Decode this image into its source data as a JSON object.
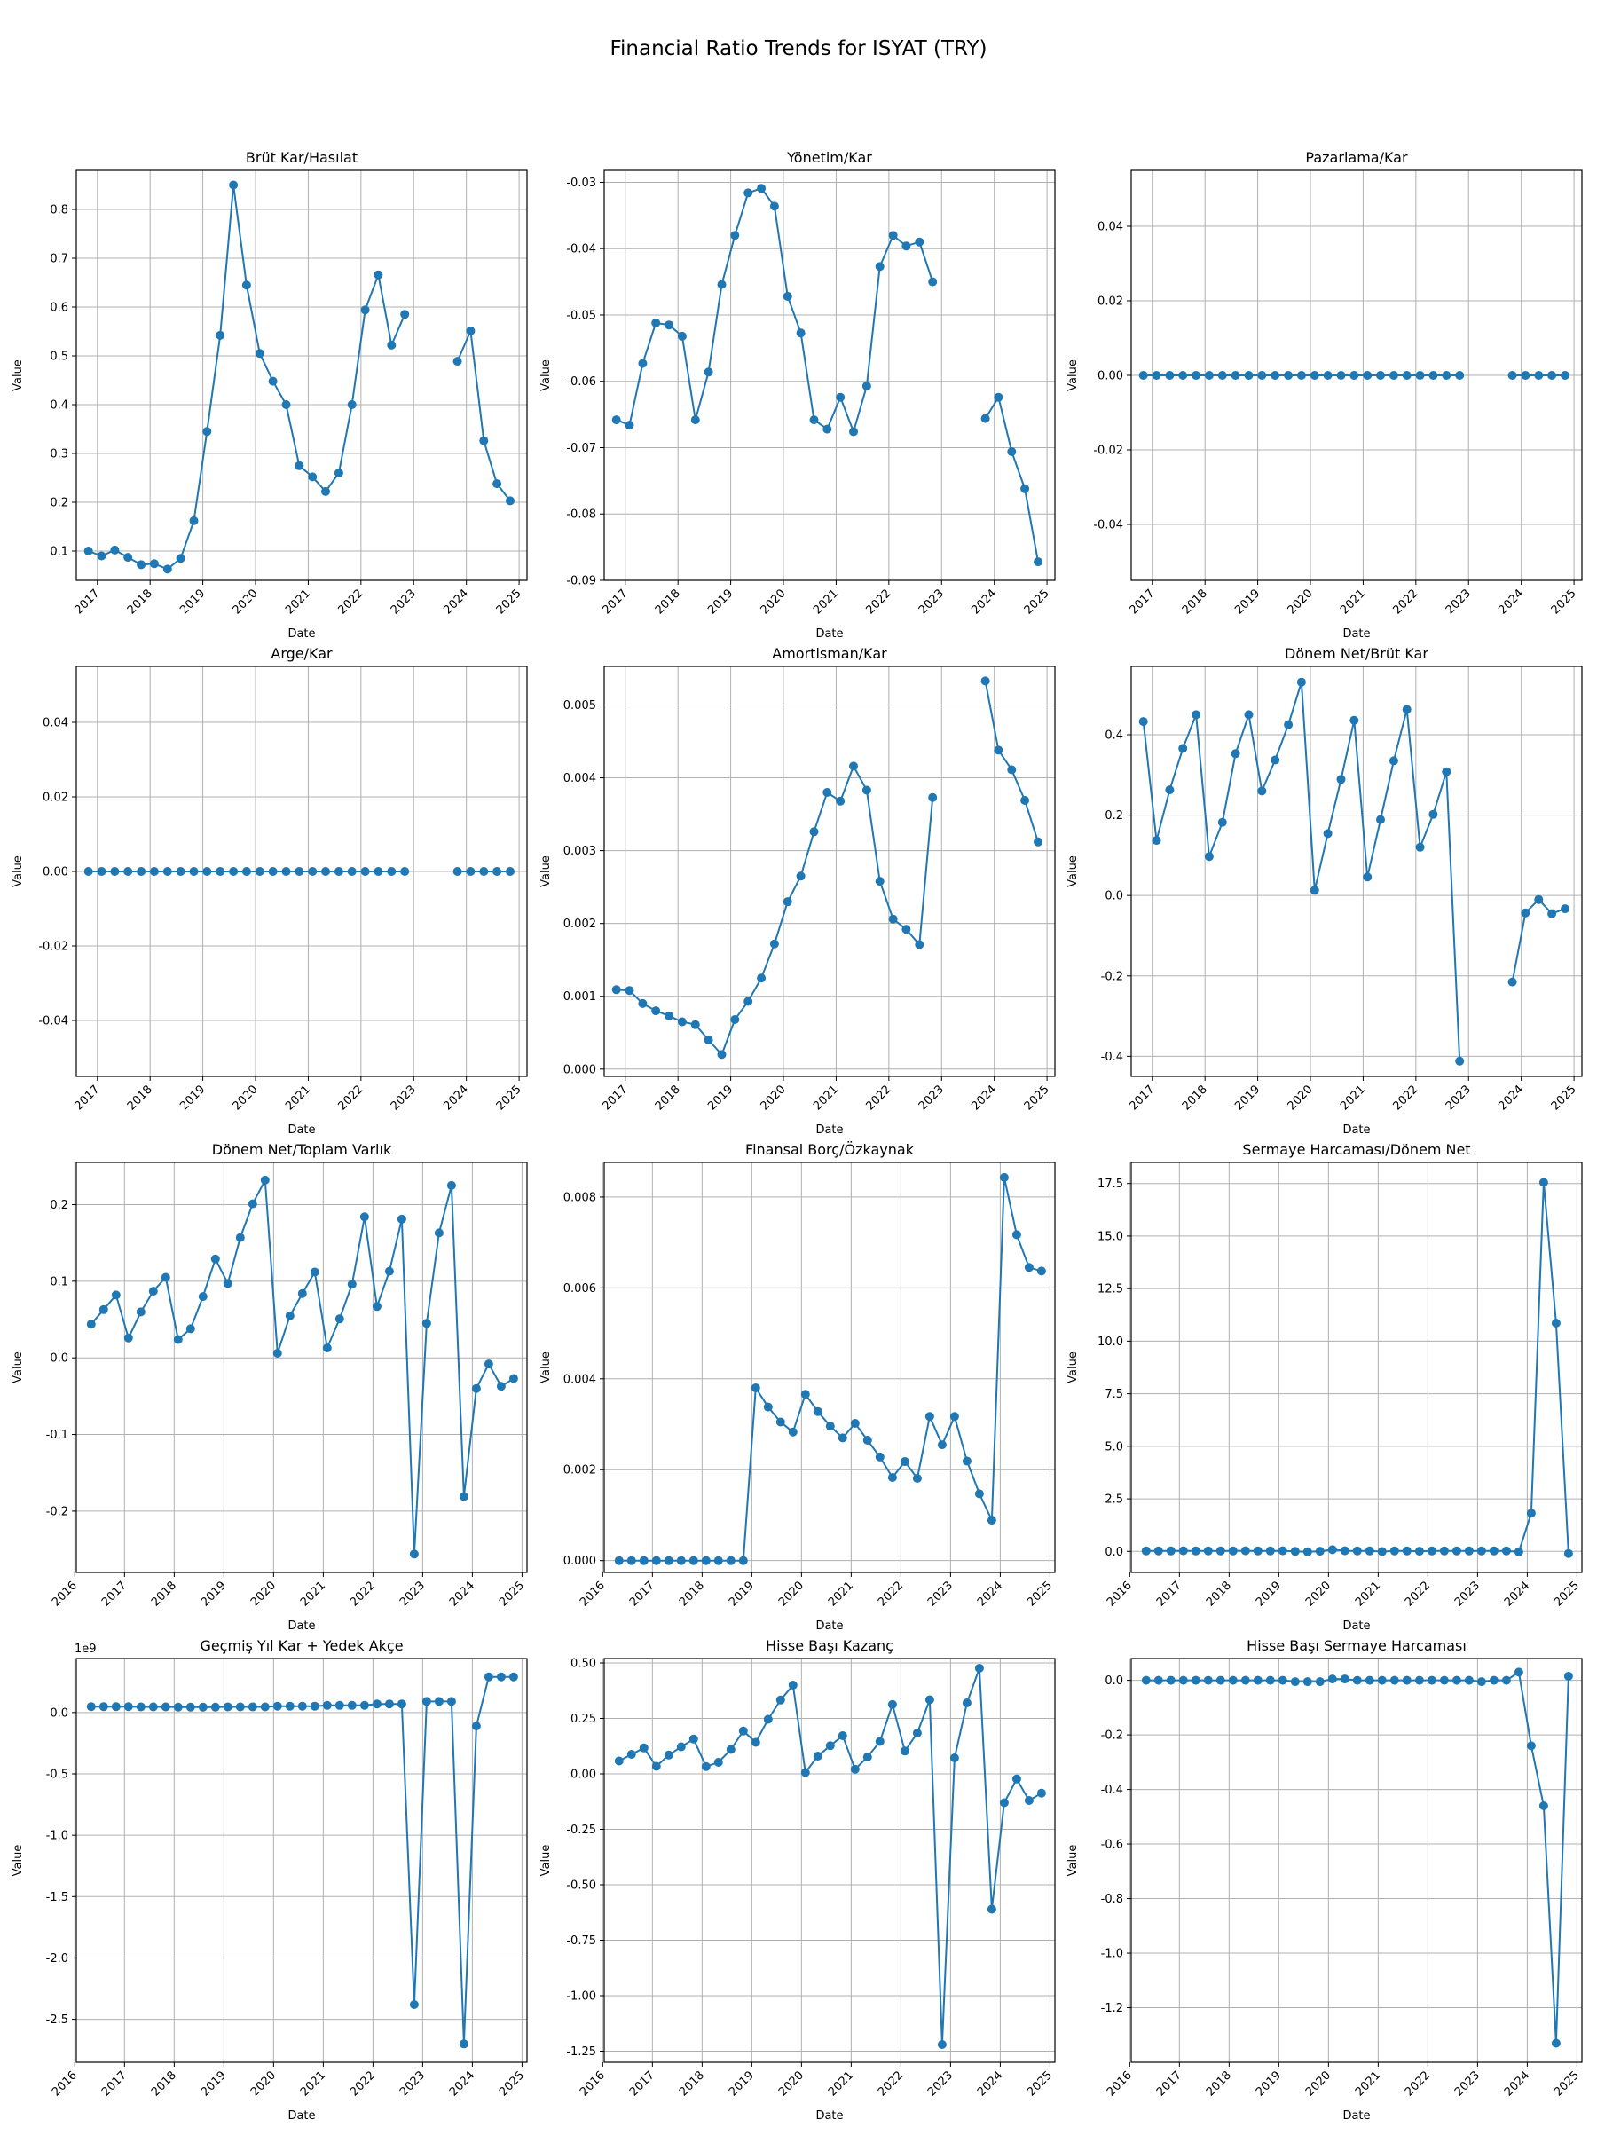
{
  "figure_title": "Financial Ratio Trends for ISYAT (TRY)",
  "chart_data": [
    {
      "type": "line",
      "title": "Brüt Kar/Hasılat",
      "xlabel": "Date",
      "ylabel": "Value",
      "xlim": [
        2016.6,
        2025.15
      ],
      "ylim": [
        0.04,
        0.88
      ],
      "yticks": [
        0.1,
        0.2,
        0.3,
        0.4,
        0.5,
        0.6,
        0.7,
        0.8
      ],
      "yfmt": 1,
      "xticks": [
        2017,
        2018,
        2019,
        2020,
        2021,
        2022,
        2023,
        2024,
        2025
      ],
      "x": [
        2016.83,
        2017.08,
        2017.33,
        2017.58,
        2017.83,
        2018.08,
        2018.33,
        2018.58,
        2018.83,
        2019.08,
        2019.33,
        2019.58,
        2019.83,
        2020.08,
        2020.33,
        2020.58,
        2020.83,
        2021.08,
        2021.33,
        2021.58,
        2021.83,
        2022.08,
        2022.33,
        2022.58,
        2022.83,
        2023.83,
        2024.08,
        2024.33,
        2024.58,
        2024.83
      ],
      "y": [
        0.1,
        0.09,
        0.102,
        0.087,
        0.072,
        0.074,
        0.063,
        0.085,
        0.162,
        0.345,
        0.542,
        0.85,
        0.645,
        0.505,
        0.448,
        0.4,
        0.275,
        0.252,
        0.222,
        0.26,
        0.4,
        0.594,
        0.666,
        0.522,
        0.585,
        0.489,
        0.551,
        0.326,
        0.238,
        0.203
      ],
      "breaks": [
        25
      ]
    },
    {
      "type": "line",
      "title": "Yönetim/Kar",
      "xlabel": "Date",
      "ylabel": "Value",
      "xlim": [
        2016.6,
        2025.15
      ],
      "ylim": [
        -0.09,
        -0.0282
      ],
      "yticks": [
        -0.09,
        -0.08,
        -0.07,
        -0.06,
        -0.05,
        -0.04,
        -0.03
      ],
      "yfmt": 2,
      "xticks": [
        2017,
        2018,
        2019,
        2020,
        2021,
        2022,
        2023,
        2024,
        2025
      ],
      "x": [
        2016.83,
        2017.08,
        2017.33,
        2017.58,
        2017.83,
        2018.08,
        2018.33,
        2018.58,
        2018.83,
        2019.08,
        2019.33,
        2019.58,
        2019.83,
        2020.08,
        2020.33,
        2020.58,
        2020.83,
        2021.08,
        2021.33,
        2021.58,
        2021.83,
        2022.08,
        2022.33,
        2022.58,
        2022.83,
        2023.83,
        2024.08,
        2024.33,
        2024.58,
        2024.83
      ],
      "y": [
        -0.0658,
        -0.0666,
        -0.0573,
        -0.0512,
        -0.0515,
        -0.0532,
        -0.0658,
        -0.0586,
        -0.0454,
        -0.038,
        -0.0316,
        -0.0309,
        -0.0336,
        -0.0472,
        -0.0527,
        -0.0658,
        -0.0672,
        -0.0624,
        -0.0676,
        -0.0607,
        -0.0427,
        -0.038,
        -0.0396,
        -0.039,
        -0.045,
        -0.0656,
        -0.0624,
        -0.0706,
        -0.0762,
        -0.0872
      ],
      "breaks": [
        25
      ]
    },
    {
      "type": "line",
      "title": "Pazarlama/Kar",
      "xlabel": "Date",
      "ylabel": "Value",
      "xlim": [
        2016.6,
        2025.15
      ],
      "ylim": [
        -0.055,
        0.055
      ],
      "yticks": [
        -0.04,
        -0.02,
        0.0,
        0.02,
        0.04
      ],
      "yfmt": 2,
      "xticks": [
        2017,
        2018,
        2019,
        2020,
        2021,
        2022,
        2023,
        2024,
        2025
      ],
      "x": [
        2016.83,
        2017.08,
        2017.33,
        2017.58,
        2017.83,
        2018.08,
        2018.33,
        2018.58,
        2018.83,
        2019.08,
        2019.33,
        2019.58,
        2019.83,
        2020.08,
        2020.33,
        2020.58,
        2020.83,
        2021.08,
        2021.33,
        2021.58,
        2021.83,
        2022.08,
        2022.33,
        2022.58,
        2022.83,
        2023.83,
        2024.08,
        2024.33,
        2024.58,
        2024.83
      ],
      "y": [
        0,
        0,
        0,
        0,
        0,
        0,
        0,
        0,
        0,
        0,
        0,
        0,
        0,
        0,
        0,
        0,
        0,
        0,
        0,
        0,
        0,
        0,
        0,
        0,
        0,
        0,
        0,
        0,
        0,
        0
      ],
      "breaks": [
        25
      ]
    },
    {
      "type": "line",
      "title": "Arge/Kar",
      "xlabel": "Date",
      "ylabel": "Value",
      "xlim": [
        2016.6,
        2025.15
      ],
      "ylim": [
        -0.055,
        0.055
      ],
      "yticks": [
        -0.04,
        -0.02,
        0.0,
        0.02,
        0.04
      ],
      "yfmt": 2,
      "xticks": [
        2017,
        2018,
        2019,
        2020,
        2021,
        2022,
        2023,
        2024,
        2025
      ],
      "x": [
        2016.83,
        2017.08,
        2017.33,
        2017.58,
        2017.83,
        2018.08,
        2018.33,
        2018.58,
        2018.83,
        2019.08,
        2019.33,
        2019.58,
        2019.83,
        2020.08,
        2020.33,
        2020.58,
        2020.83,
        2021.08,
        2021.33,
        2021.58,
        2021.83,
        2022.08,
        2022.33,
        2022.58,
        2022.83,
        2023.83,
        2024.08,
        2024.33,
        2024.58,
        2024.83
      ],
      "y": [
        0,
        0,
        0,
        0,
        0,
        0,
        0,
        0,
        0,
        0,
        0,
        0,
        0,
        0,
        0,
        0,
        0,
        0,
        0,
        0,
        0,
        0,
        0,
        0,
        0,
        0,
        0,
        0,
        0,
        0
      ],
      "breaks": [
        25
      ]
    },
    {
      "type": "line",
      "title": "Amortisman/Kar",
      "xlabel": "Date",
      "ylabel": "Value",
      "xlim": [
        2016.6,
        2025.15
      ],
      "ylim": [
        -0.0001,
        0.00553
      ],
      "yticks": [
        0.0,
        0.001,
        0.002,
        0.003,
        0.004,
        0.005
      ],
      "yfmt": 3,
      "xticks": [
        2017,
        2018,
        2019,
        2020,
        2021,
        2022,
        2023,
        2024,
        2025
      ],
      "x": [
        2016.83,
        2017.08,
        2017.33,
        2017.58,
        2017.83,
        2018.08,
        2018.33,
        2018.58,
        2018.83,
        2019.08,
        2019.33,
        2019.58,
        2019.83,
        2020.08,
        2020.33,
        2020.58,
        2020.83,
        2021.08,
        2021.33,
        2021.58,
        2021.83,
        2022.08,
        2022.33,
        2022.58,
        2022.83,
        2023.83,
        2024.08,
        2024.33,
        2024.58,
        2024.83
      ],
      "y": [
        0.00109,
        0.00108,
        0.0009,
        0.0008,
        0.00073,
        0.00065,
        0.00061,
        0.0004,
        0.0002,
        0.00068,
        0.00093,
        0.00125,
        0.00172,
        0.0023,
        0.00265,
        0.00326,
        0.0038,
        0.00368,
        0.00416,
        0.00383,
        0.00258,
        0.00206,
        0.00192,
        0.00171,
        0.00373,
        0.00533,
        0.00438,
        0.00411,
        0.00369,
        0.00312
      ],
      "breaks": [
        25
      ]
    },
    {
      "type": "line",
      "title": "Dönem Net/Brüt Kar",
      "xlabel": "Date",
      "ylabel": "Value",
      "xlim": [
        2016.6,
        2025.15
      ],
      "ylim": [
        -0.45,
        0.57
      ],
      "yticks": [
        -0.4,
        -0.2,
        0.0,
        0.2,
        0.4
      ],
      "yfmt": 1,
      "xticks": [
        2017,
        2018,
        2019,
        2020,
        2021,
        2022,
        2023,
        2024,
        2025
      ],
      "x": [
        2016.83,
        2017.08,
        2017.33,
        2017.58,
        2017.83,
        2018.08,
        2018.33,
        2018.58,
        2018.83,
        2019.08,
        2019.33,
        2019.58,
        2019.83,
        2020.08,
        2020.33,
        2020.58,
        2020.83,
        2021.08,
        2021.33,
        2021.58,
        2021.83,
        2022.08,
        2022.33,
        2022.58,
        2022.83,
        2023.83,
        2024.08,
        2024.33,
        2024.58,
        2024.83
      ],
      "y": [
        0.433,
        0.137,
        0.263,
        0.366,
        0.45,
        0.097,
        0.182,
        0.353,
        0.45,
        0.26,
        0.337,
        0.425,
        0.531,
        0.013,
        0.154,
        0.289,
        0.436,
        0.046,
        0.189,
        0.335,
        0.463,
        0.12,
        0.202,
        0.308,
        -0.412,
        -0.215,
        -0.043,
        -0.01,
        -0.045,
        -0.033
      ],
      "breaks": [
        25
      ]
    },
    {
      "type": "line",
      "title": "Dönem Net/Toplam Varlık",
      "xlabel": "Date",
      "ylabel": "Value",
      "xlim": [
        2016.03,
        2025.1
      ],
      "ylim": [
        -0.28,
        0.255
      ],
      "yticks": [
        -0.2,
        -0.1,
        0.0,
        0.1,
        0.2
      ],
      "yfmt": 1,
      "xticks": [
        2016,
        2017,
        2018,
        2019,
        2020,
        2021,
        2022,
        2023,
        2024,
        2025
      ],
      "x": [
        2016.33,
        2016.58,
        2016.83,
        2017.08,
        2017.33,
        2017.58,
        2017.83,
        2018.08,
        2018.33,
        2018.58,
        2018.83,
        2019.08,
        2019.33,
        2019.58,
        2019.83,
        2020.08,
        2020.33,
        2020.58,
        2020.83,
        2021.08,
        2021.33,
        2021.58,
        2021.83,
        2022.08,
        2022.33,
        2022.58,
        2022.83,
        2023.08,
        2023.33,
        2023.58,
        2023.83,
        2024.08,
        2024.33,
        2024.58,
        2024.83
      ],
      "y": [
        0.044,
        0.063,
        0.082,
        0.026,
        0.06,
        0.087,
        0.105,
        0.024,
        0.038,
        0.08,
        0.129,
        0.097,
        0.157,
        0.201,
        0.232,
        0.006,
        0.055,
        0.084,
        0.112,
        0.013,
        0.051,
        0.096,
        0.184,
        0.067,
        0.113,
        0.181,
        -0.256,
        0.045,
        0.163,
        0.225,
        -0.181,
        -0.04,
        -0.008,
        -0.037,
        -0.027
      ],
      "breaks": []
    },
    {
      "type": "line",
      "title": "Finansal Borç/Özkaynak",
      "xlabel": "Date",
      "ylabel": "Value",
      "xlim": [
        2016.03,
        2025.1
      ],
      "ylim": [
        -0.00026,
        0.00876
      ],
      "yticks": [
        0.0,
        0.002,
        0.004,
        0.006,
        0.008
      ],
      "yfmt": 3,
      "xticks": [
        2016,
        2017,
        2018,
        2019,
        2020,
        2021,
        2022,
        2023,
        2024,
        2025
      ],
      "x": [
        2016.33,
        2016.58,
        2016.83,
        2017.08,
        2017.33,
        2017.58,
        2017.83,
        2018.08,
        2018.33,
        2018.58,
        2018.83,
        2019.08,
        2019.33,
        2019.58,
        2019.83,
        2020.08,
        2020.33,
        2020.58,
        2020.83,
        2021.08,
        2021.33,
        2021.58,
        2021.83,
        2022.08,
        2022.33,
        2022.58,
        2022.83,
        2023.08,
        2023.33,
        2023.58,
        2023.83,
        2024.08,
        2024.33,
        2024.58,
        2024.83
      ],
      "y": [
        0,
        0,
        0,
        0,
        0,
        0,
        0,
        0,
        0,
        0,
        0,
        0.0038,
        0.00338,
        0.00305,
        0.00283,
        0.00366,
        0.00328,
        0.00296,
        0.0027,
        0.00302,
        0.00265,
        0.00228,
        0.00183,
        0.00218,
        0.00181,
        0.00317,
        0.00255,
        0.00317,
        0.00219,
        0.00147,
        0.00089,
        0.00843,
        0.00717,
        0.00645,
        0.00637
      ],
      "breaks": []
    },
    {
      "type": "line",
      "title": "Sermaye Harcaması/Dönem Net",
      "xlabel": "Date",
      "ylabel": "Value",
      "xlim": [
        2016.03,
        2025.1
      ],
      "ylim": [
        -1.0,
        18.5
      ],
      "yticks": [
        0.0,
        2.5,
        5.0,
        7.5,
        10.0,
        12.5,
        15.0,
        17.5
      ],
      "yfmt": 1,
      "xticks": [
        2016,
        2017,
        2018,
        2019,
        2020,
        2021,
        2022,
        2023,
        2024,
        2025
      ],
      "x": [
        2016.33,
        2016.58,
        2016.83,
        2017.08,
        2017.33,
        2017.58,
        2017.83,
        2018.08,
        2018.33,
        2018.58,
        2018.83,
        2019.08,
        2019.33,
        2019.58,
        2019.83,
        2020.08,
        2020.33,
        2020.58,
        2020.83,
        2021.08,
        2021.33,
        2021.58,
        2021.83,
        2022.08,
        2022.33,
        2022.58,
        2022.83,
        2023.08,
        2023.33,
        2023.58,
        2023.83,
        2024.08,
        2024.33,
        2024.58,
        2024.83
      ],
      "y": [
        0.02,
        0.02,
        0.02,
        0.03,
        0.02,
        0.02,
        0.02,
        0.02,
        0.03,
        0.02,
        0.02,
        0.03,
        0.0,
        -0.02,
        0.01,
        0.08,
        0.03,
        0.02,
        0.02,
        -0.01,
        0.02,
        0.02,
        0.01,
        0.02,
        0.02,
        0.02,
        0.02,
        0.02,
        0.02,
        0.02,
        -0.02,
        1.82,
        17.55,
        10.86,
        -0.1
      ],
      "breaks": []
    },
    {
      "type": "line",
      "title": "Geçmiş Yıl Kar + Yedek Akçe",
      "xlabel": "Date",
      "ylabel": "Value",
      "offset_label": "1e9",
      "xlim": [
        2016.03,
        2025.1
      ],
      "ylim": [
        -2.85,
        0.44
      ],
      "yticks": [
        -2.5,
        -2.0,
        -1.5,
        -1.0,
        -0.5,
        0.0
      ],
      "yfmt": 1,
      "xticks": [
        2016,
        2017,
        2018,
        2019,
        2020,
        2021,
        2022,
        2023,
        2024,
        2025
      ],
      "x": [
        2016.33,
        2016.58,
        2016.83,
        2017.08,
        2017.33,
        2017.58,
        2017.83,
        2018.08,
        2018.33,
        2018.58,
        2018.83,
        2019.08,
        2019.33,
        2019.58,
        2019.83,
        2020.08,
        2020.33,
        2020.58,
        2020.83,
        2021.08,
        2021.33,
        2021.58,
        2021.83,
        2022.08,
        2022.33,
        2022.58,
        2022.83,
        2023.08,
        2023.33,
        2023.58,
        2023.83,
        2024.08,
        2024.33,
        2024.58,
        2024.83
      ],
      "y": [
        0.048,
        0.048,
        0.048,
        0.048,
        0.046,
        0.046,
        0.046,
        0.044,
        0.044,
        0.044,
        0.044,
        0.046,
        0.046,
        0.046,
        0.046,
        0.052,
        0.052,
        0.052,
        0.052,
        0.058,
        0.058,
        0.058,
        0.058,
        0.07,
        0.07,
        0.07,
        -2.38,
        0.09,
        0.09,
        0.09,
        -2.7,
        -0.11,
        0.29,
        0.29,
        0.29
      ],
      "breaks": []
    },
    {
      "type": "line",
      "title": "Hisse Başı Kazanç",
      "xlabel": "Date",
      "ylabel": "Value",
      "xlim": [
        2016.03,
        2025.1
      ],
      "ylim": [
        -1.3,
        0.52
      ],
      "yticks": [
        -1.25,
        -1.0,
        -0.75,
        -0.5,
        -0.25,
        0.0,
        0.25,
        0.5
      ],
      "yfmt": 2,
      "xticks": [
        2016,
        2017,
        2018,
        2019,
        2020,
        2021,
        2022,
        2023,
        2024,
        2025
      ],
      "x": [
        2016.33,
        2016.58,
        2016.83,
        2017.08,
        2017.33,
        2017.58,
        2017.83,
        2018.08,
        2018.33,
        2018.58,
        2018.83,
        2019.08,
        2019.33,
        2019.58,
        2019.83,
        2020.08,
        2020.33,
        2020.58,
        2020.83,
        2021.08,
        2021.33,
        2021.58,
        2021.83,
        2022.08,
        2022.33,
        2022.58,
        2022.83,
        2023.08,
        2023.33,
        2023.58,
        2023.83,
        2024.08,
        2024.33,
        2024.58,
        2024.83
      ],
      "y": [
        0.058,
        0.088,
        0.117,
        0.034,
        0.085,
        0.122,
        0.157,
        0.033,
        0.052,
        0.11,
        0.193,
        0.142,
        0.246,
        0.333,
        0.4,
        0.006,
        0.08,
        0.127,
        0.172,
        0.021,
        0.076,
        0.146,
        0.313,
        0.103,
        0.184,
        0.334,
        -1.22,
        0.072,
        0.32,
        0.476,
        -0.61,
        -0.13,
        -0.023,
        -0.12,
        -0.087
      ],
      "breaks": []
    },
    {
      "type": "line",
      "title": "Hisse Başı Sermaye Harcaması",
      "xlabel": "Date",
      "ylabel": "Value",
      "xlim": [
        2016.03,
        2025.1
      ],
      "ylim": [
        -1.4,
        0.08
      ],
      "yticks": [
        -1.2,
        -1.0,
        -0.8,
        -0.6,
        -0.4,
        -0.2,
        0.0
      ],
      "yfmt": 1,
      "xticks": [
        2016,
        2017,
        2018,
        2019,
        2020,
        2021,
        2022,
        2023,
        2024,
        2025
      ],
      "x": [
        2016.33,
        2016.58,
        2016.83,
        2017.08,
        2017.33,
        2017.58,
        2017.83,
        2018.08,
        2018.33,
        2018.58,
        2018.83,
        2019.08,
        2019.33,
        2019.58,
        2019.83,
        2020.08,
        2020.33,
        2020.58,
        2020.83,
        2021.08,
        2021.33,
        2021.58,
        2021.83,
        2022.08,
        2022.33,
        2022.58,
        2022.83,
        2023.08,
        2023.33,
        2023.58,
        2023.83,
        2024.08,
        2024.33,
        2024.58,
        2024.83
      ],
      "y": [
        0.0,
        0.0,
        0.0,
        0.0,
        0.0,
        0.0,
        0.0,
        0.0,
        0.0,
        0.0,
        0.0,
        0.0,
        -0.005,
        -0.005,
        -0.005,
        0.005,
        0.005,
        0.0,
        0.0,
        0.0,
        0.0,
        0.0,
        0.0,
        0.0,
        0.0,
        0.0,
        0.0,
        -0.005,
        0.0,
        0.0,
        0.03,
        -0.24,
        -0.46,
        -1.33,
        0.015
      ],
      "breaks": []
    }
  ]
}
